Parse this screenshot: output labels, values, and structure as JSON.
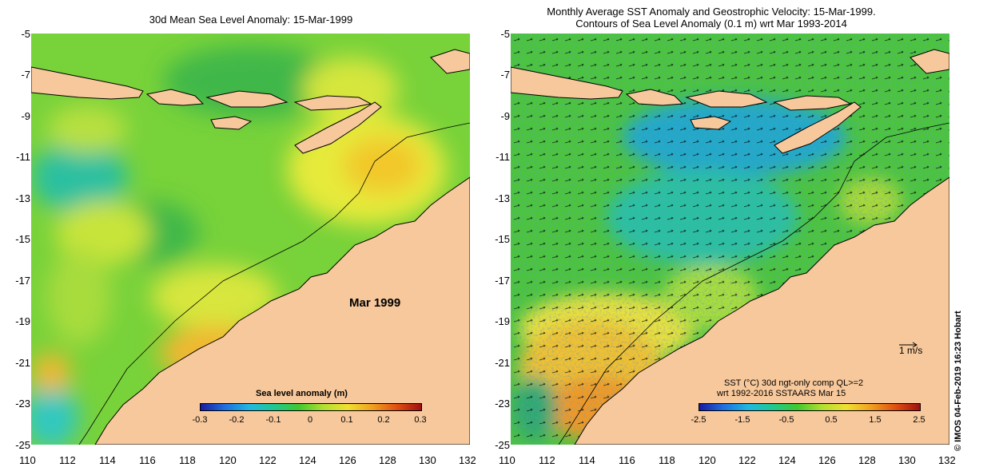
{
  "left": {
    "title": "30d Mean Sea Level Anomaly: 15-Mar-1999",
    "month_label": "Mar 1999",
    "colorbar": {
      "title": "Sea level anomaly (m)",
      "ticks": [
        "-0.3",
        "-0.2",
        "-0.1",
        "0",
        "0.1",
        "0.2",
        "0.3"
      ]
    }
  },
  "right": {
    "title_line1": "Monthly Average SST Anomaly  and Geostrophic Velocity: 15-Mar-1999.",
    "title_line2": "Contours of Sea Level Anomaly (0.1 m) wrt Mar 1993-2014",
    "scale_label": "1 m/s",
    "colorbar": {
      "title_line1": "SST (°C) 30d ngt-only comp QL>=2",
      "title_line2": "wrt 1992-2016 SSTAARS Mar 15",
      "ticks": [
        "-2.5",
        "-1.5",
        "-0.5",
        "0.5",
        "1.5",
        "2.5"
      ]
    }
  },
  "axes": {
    "y_ticks": [
      "-5",
      "-7",
      "-9",
      "-11",
      "-13",
      "-15",
      "-17",
      "-19",
      "-21",
      "-23",
      "-25"
    ],
    "x_ticks": [
      "110",
      "112",
      "114",
      "116",
      "118",
      "120",
      "122",
      "124",
      "126",
      "128",
      "130",
      "132"
    ]
  },
  "credit": "© IMOS 04-Feb-2019 16:23 Hobart",
  "colors": {
    "land": "#f7c89b",
    "ocean_green": "#4cc43c",
    "ocean_yellow": "#d8e640",
    "warm": "#f0a030",
    "cool": "#30b8c8"
  }
}
